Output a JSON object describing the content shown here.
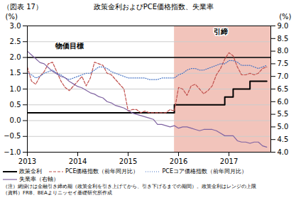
{
  "chart_data": {
    "type": "line",
    "title": "政策金利およびPCE価格指数、失業率",
    "subtitle": "（図表 17）",
    "notes": [
      "（注）網掛けは金融引き締め期（政策金利を引き上げてから、引き下げるまでの期間）。政策金利はレンジの上限",
      "（資料）FRB、BEAよりニッセイ基礎研究所作成"
    ],
    "ylabel": "(%)",
    "y2label": "(%)",
    "x": [
      2013.0,
      2013.083,
      2013.167,
      2013.25,
      2013.333,
      2013.417,
      2013.5,
      2013.583,
      2013.667,
      2013.75,
      2013.833,
      2013.917,
      2014.0,
      2014.083,
      2014.167,
      2014.25,
      2014.333,
      2014.417,
      2014.5,
      2014.583,
      2014.667,
      2014.75,
      2014.833,
      2014.917,
      2015.0,
      2015.083,
      2015.167,
      2015.25,
      2015.333,
      2015.417,
      2015.5,
      2015.583,
      2015.667,
      2015.75,
      2015.833,
      2015.917,
      2016.0,
      2016.083,
      2016.167,
      2016.25,
      2016.333,
      2016.417,
      2016.5,
      2016.583,
      2016.667,
      2016.75,
      2016.833,
      2016.917,
      2017.0,
      2017.083,
      2017.167,
      2017.25,
      2017.333,
      2017.417,
      2017.5,
      2017.583,
      2017.667,
      2017.75
    ],
    "xlim": [
      2013.0,
      2017.83
    ],
    "xticks": [
      2013,
      2014,
      2015,
      2016,
      2017
    ],
    "ylim": [
      -1.0,
      3.0
    ],
    "yticks": [
      {
        "value": -1.0,
        "label": "−1.0"
      },
      {
        "value": -0.5,
        "label": "−0.5"
      },
      {
        "value": 0.0,
        "label": "0.0"
      },
      0.5,
      {
        "value": 1.0,
        "label": "1.0"
      },
      1.5,
      {
        "value": 2.0,
        "label": "2.0"
      },
      2.5,
      {
        "value": 3.0,
        "label": "3.0"
      }
    ],
    "y2lim": [
      4.0,
      9.0
    ],
    "y2ticks": [
      {
        "value": 4.0,
        "label": "4.0"
      },
      4.5,
      {
        "value": 5.0,
        "label": "5.0"
      },
      5.5,
      {
        "value": 6.0,
        "label": "6.0"
      },
      6.5,
      {
        "value": 7.0,
        "label": "7.0"
      },
      7.5,
      {
        "value": 8.0,
        "label": "8.0"
      },
      8.5,
      {
        "value": 9.0,
        "label": "9.0"
      }
    ],
    "grid": true,
    "legend": "lower left",
    "shading": {
      "start": 2015.917,
      "end": 2017.83,
      "color": "#f2c4bb"
    },
    "reference_lines": [
      {
        "y": 2.0,
        "color": "#000000"
      }
    ],
    "annotations": [
      {
        "text": "物価目標",
        "x": 2013.55,
        "y": 2.3
      },
      {
        "text": "引締",
        "x": 2016.7,
        "y": 2.75
      }
    ],
    "series": [
      {
        "name": "政策金利",
        "type": "step",
        "color": "#000000",
        "line_style": "solid",
        "values": [
          0.25,
          0.25,
          0.25,
          0.25,
          0.25,
          0.25,
          0.25,
          0.25,
          0.25,
          0.25,
          0.25,
          0.25,
          0.25,
          0.25,
          0.25,
          0.25,
          0.25,
          0.25,
          0.25,
          0.25,
          0.25,
          0.25,
          0.25,
          0.25,
          0.25,
          0.25,
          0.25,
          0.25,
          0.25,
          0.25,
          0.25,
          0.25,
          0.25,
          0.25,
          0.25,
          0.5,
          0.5,
          0.5,
          0.5,
          0.5,
          0.5,
          0.5,
          0.5,
          0.5,
          0.5,
          0.5,
          0.5,
          0.75,
          0.75,
          1.0,
          1.0,
          1.0,
          1.0,
          1.25,
          1.25,
          1.25,
          1.25,
          1.25
        ]
      },
      {
        "name": "PCE価格指数（前年同月比）",
        "type": "line",
        "color": "#c0504d",
        "line_style": "dashed",
        "values": [
          1.7,
          1.25,
          1.15,
          1.4,
          1.55,
          1.8,
          1.85,
          1.55,
          1.25,
          1.05,
          0.95,
          1.1,
          1.25,
          1.4,
          1.1,
          1.35,
          1.85,
          1.8,
          1.75,
          1.5,
          1.45,
          1.3,
          1.15,
          1.0,
          0.3,
          0.35,
          0.35,
          0.25,
          0.3,
          0.25,
          0.25,
          0.25,
          0.25,
          0.25,
          0.35,
          0.3,
          1.05,
          1.0,
          0.8,
          1.1,
          1.15,
          1.0,
          0.85,
          0.95,
          1.1,
          1.45,
          1.65,
          1.95,
          2.15,
          2.05,
          1.7,
          1.45,
          1.45,
          1.5,
          1.45,
          1.5,
          1.65,
          1.7
        ]
      },
      {
        "name": "PCEコア価格指数（前年同月比）",
        "type": "line",
        "color": "#4472c4",
        "line_style": "dotted",
        "values": [
          1.5,
          1.45,
          1.35,
          1.4,
          1.5,
          1.55,
          1.6,
          1.5,
          1.45,
          1.35,
          1.3,
          1.35,
          1.4,
          1.45,
          1.5,
          1.5,
          1.6,
          1.7,
          1.7,
          1.65,
          1.55,
          1.5,
          1.45,
          1.4,
          1.35,
          1.35,
          1.35,
          1.35,
          1.35,
          1.3,
          1.3,
          1.3,
          1.35,
          1.35,
          1.35,
          1.35,
          1.45,
          1.5,
          1.6,
          1.65,
          1.65,
          1.6,
          1.6,
          1.65,
          1.7,
          1.75,
          1.8,
          1.8,
          1.9,
          1.9,
          1.85,
          1.75,
          1.75,
          1.75,
          1.7,
          1.65,
          1.7,
          1.75
        ]
      },
      {
        "name": "失業率（右軸）",
        "type": "line",
        "axis": "y2",
        "color": "#8064a2",
        "line_style": "solid",
        "values": [
          8.0,
          7.85,
          7.7,
          7.55,
          7.5,
          7.35,
          7.2,
          7.1,
          7.0,
          6.95,
          6.8,
          6.7,
          6.6,
          6.55,
          6.45,
          6.35,
          6.3,
          6.2,
          6.15,
          6.0,
          5.95,
          5.85,
          5.8,
          5.75,
          5.65,
          5.55,
          5.5,
          5.45,
          5.4,
          5.35,
          5.3,
          5.1,
          5.1,
          5.05,
          5.0,
          5.05,
          4.95,
          5.0,
          5.0,
          4.95,
          4.9,
          4.85,
          4.9,
          4.9,
          4.9,
          4.85,
          4.75,
          4.65,
          4.65,
          4.65,
          4.45,
          4.4,
          4.4,
          4.35,
          4.4,
          4.4,
          4.25,
          4.2
        ]
      }
    ]
  }
}
